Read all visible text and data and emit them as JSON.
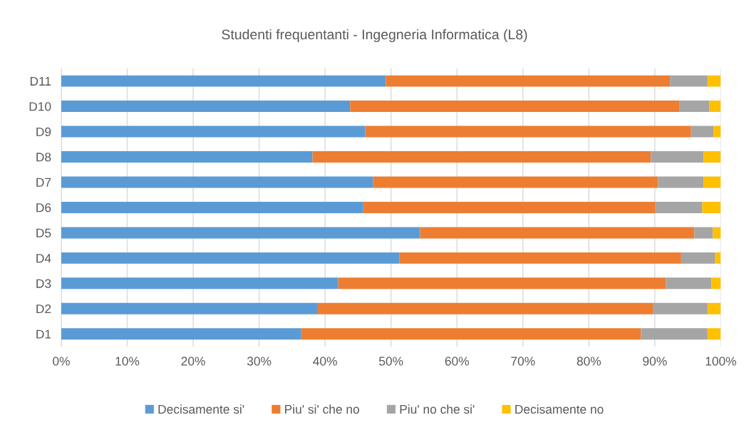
{
  "chart_data": {
    "type": "bar",
    "orientation": "horizontal",
    "stacked": true,
    "title": "Studenti frequentanti - Ingegneria Informatica (L8)",
    "categories": [
      "D11",
      "D10",
      "D9",
      "D8",
      "D7",
      "D6",
      "D5",
      "D4",
      "D3",
      "D2",
      "D1"
    ],
    "series": [
      {
        "name": "Decisamente si'",
        "color": "#5b9bd5",
        "values": [
          49.2,
          43.8,
          46.1,
          38.1,
          47.3,
          45.8,
          54.4,
          51.3,
          42.0,
          38.9,
          36.4
        ]
      },
      {
        "name": "Piu' si' che no",
        "color": "#ed7d31",
        "values": [
          43.1,
          49.9,
          49.4,
          51.3,
          43.2,
          44.3,
          41.6,
          42.7,
          49.7,
          50.8,
          51.5
        ]
      },
      {
        "name": "Piu' no che si'",
        "color": "#a5a5a5",
        "values": [
          5.7,
          4.6,
          3.4,
          8.0,
          6.9,
          7.1,
          2.8,
          5.1,
          6.9,
          8.3,
          10.1
        ]
      },
      {
        "name": "Decisamente no",
        "color": "#ffc000",
        "values": [
          2.0,
          1.7,
          1.1,
          2.6,
          2.6,
          2.8,
          1.2,
          0.9,
          1.4,
          2.0,
          2.0
        ]
      }
    ],
    "xlim": [
      0,
      100
    ],
    "xticks": [
      {
        "value": 0,
        "label": "0%"
      },
      {
        "value": 10,
        "label": "10%"
      },
      {
        "value": 20,
        "label": "20%"
      },
      {
        "value": 30,
        "label": "30%"
      },
      {
        "value": 40,
        "label": "40%"
      },
      {
        "value": 50,
        "label": "50%"
      },
      {
        "value": 60,
        "label": "60%"
      },
      {
        "value": 70,
        "label": "70%"
      },
      {
        "value": 80,
        "label": "80%"
      },
      {
        "value": 90,
        "label": "90%"
      },
      {
        "value": 100,
        "label": "100%"
      }
    ],
    "grid": "x",
    "legend": "bottom"
  }
}
